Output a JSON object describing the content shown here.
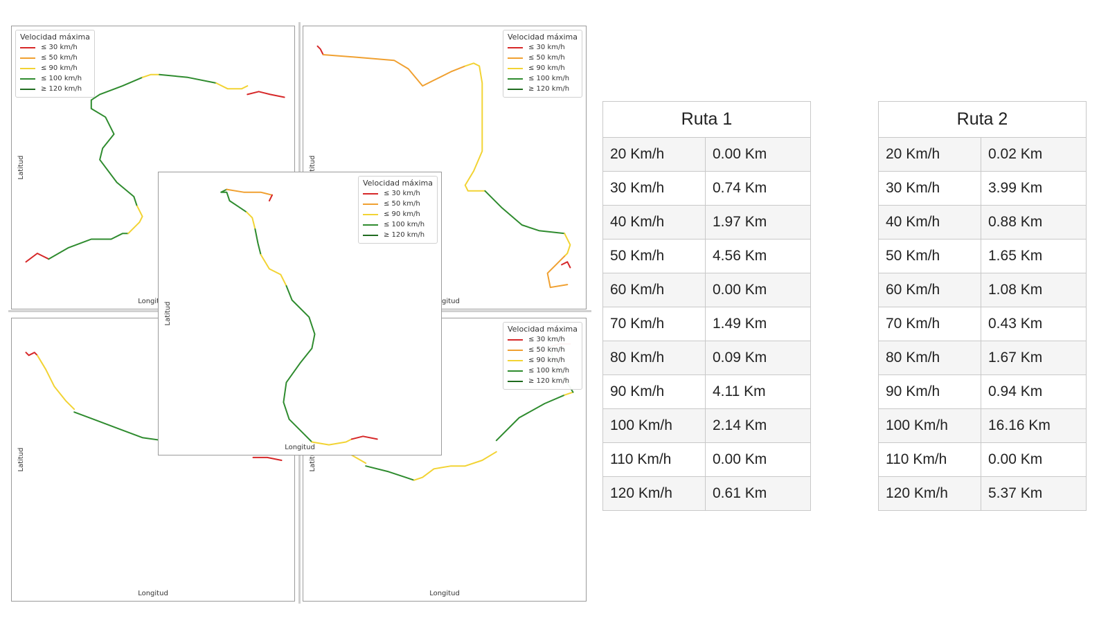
{
  "chart_data": [
    {
      "type": "line",
      "xlabel": "Longitud",
      "ylabel": "Latitud",
      "legend": {
        "placement": "top-left",
        "title": "Velocidad máxima",
        "entries": [
          {
            "label": "≤ 30 km/h",
            "color": "#d62728"
          },
          {
            "label": "≤ 50 km/h",
            "color": "#f0a030"
          },
          {
            "label": "≤ 90 km/h",
            "color": "#f2d333"
          },
          {
            "label": "≤ 100 km/h",
            "color": "#2e8b2e"
          },
          {
            "label": "≥ 120 km/h",
            "color": "#1f6b1f"
          }
        ]
      },
      "series": [
        {
          "color": "#d62728",
          "x": [
            0.05,
            0.09,
            0.11,
            0.13
          ],
          "y": [
            0.17,
            0.2,
            0.19,
            0.18
          ]
        },
        {
          "color": "#2e8b2e",
          "x": [
            0.13,
            0.2,
            0.28,
            0.35,
            0.39,
            0.41
          ],
          "y": [
            0.18,
            0.22,
            0.25,
            0.25,
            0.27,
            0.27
          ]
        },
        {
          "color": "#f2d333",
          "x": [
            0.41,
            0.45,
            0.46,
            0.44
          ],
          "y": [
            0.27,
            0.31,
            0.33,
            0.37
          ]
        },
        {
          "color": "#2e8b2e",
          "x": [
            0.44,
            0.43,
            0.37,
            0.31,
            0.32,
            0.36,
            0.33,
            0.28,
            0.28,
            0.31,
            0.39,
            0.46
          ],
          "y": [
            0.37,
            0.4,
            0.45,
            0.53,
            0.57,
            0.62,
            0.68,
            0.71,
            0.74,
            0.76,
            0.79,
            0.82
          ]
        },
        {
          "color": "#f2d333",
          "x": [
            0.46,
            0.49,
            0.52
          ],
          "y": [
            0.82,
            0.83,
            0.83
          ]
        },
        {
          "color": "#2e8b2e",
          "x": [
            0.52,
            0.62,
            0.72
          ],
          "y": [
            0.83,
            0.82,
            0.8
          ]
        },
        {
          "color": "#f2d333",
          "x": [
            0.72,
            0.76,
            0.81,
            0.83
          ],
          "y": [
            0.8,
            0.78,
            0.78,
            0.79
          ]
        },
        {
          "color": "#d62728",
          "x": [
            0.83,
            0.87,
            0.91,
            0.96
          ],
          "y": [
            0.76,
            0.77,
            0.76,
            0.75
          ]
        }
      ]
    },
    {
      "type": "line",
      "xlabel": "Longitud",
      "ylabel": "Latitud",
      "legend": {
        "placement": "top-right",
        "title": "Velocidad máxima",
        "entries": [
          {
            "label": "≤ 30 km/h",
            "color": "#d62728"
          },
          {
            "label": "≤ 50 km/h",
            "color": "#f0a030"
          },
          {
            "label": "≤ 90 km/h",
            "color": "#f2d333"
          },
          {
            "label": "≤ 100 km/h",
            "color": "#2e8b2e"
          },
          {
            "label": "≥ 120 km/h",
            "color": "#1f6b1f"
          }
        ]
      },
      "series": [
        {
          "color": "#d62728",
          "x": [
            0.05,
            0.06,
            0.07
          ],
          "y": [
            0.93,
            0.92,
            0.9
          ]
        },
        {
          "color": "#f0a030",
          "x": [
            0.07,
            0.2,
            0.32,
            0.37,
            0.42,
            0.46,
            0.52,
            0.57
          ],
          "y": [
            0.9,
            0.89,
            0.88,
            0.85,
            0.79,
            0.81,
            0.84,
            0.86
          ]
        },
        {
          "color": "#f2d333",
          "x": [
            0.57,
            0.6,
            0.62,
            0.63,
            0.63,
            0.6,
            0.57,
            0.58,
            0.64
          ],
          "y": [
            0.86,
            0.87,
            0.86,
            0.8,
            0.56,
            0.49,
            0.44,
            0.42,
            0.42
          ]
        },
        {
          "color": "#2e8b2e",
          "x": [
            0.64,
            0.7,
            0.77,
            0.83,
            0.92
          ],
          "y": [
            0.42,
            0.36,
            0.3,
            0.28,
            0.27
          ]
        },
        {
          "color": "#f2d333",
          "x": [
            0.92,
            0.94,
            0.93,
            0.92
          ],
          "y": [
            0.27,
            0.23,
            0.2,
            0.19
          ]
        },
        {
          "color": "#f0a030",
          "x": [
            0.92,
            0.89,
            0.86,
            0.87,
            0.93
          ],
          "y": [
            0.19,
            0.16,
            0.13,
            0.08,
            0.09
          ]
        },
        {
          "color": "#d62728",
          "x": [
            0.91,
            0.93,
            0.94
          ],
          "y": [
            0.16,
            0.17,
            0.15
          ]
        }
      ]
    },
    {
      "type": "line",
      "xlabel": "Longitud",
      "ylabel": "Latitud",
      "series": [
        {
          "color": "#d62728",
          "x": [
            0.05,
            0.06,
            0.08,
            0.09
          ],
          "y": [
            0.88,
            0.87,
            0.88,
            0.87
          ]
        },
        {
          "color": "#f2d333",
          "x": [
            0.09,
            0.12,
            0.15,
            0.19,
            0.22
          ],
          "y": [
            0.87,
            0.82,
            0.76,
            0.71,
            0.68
          ]
        },
        {
          "color": "#2e8b2e",
          "x": [
            0.22,
            0.3,
            0.38,
            0.46,
            0.6,
            0.73
          ],
          "y": [
            0.67,
            0.64,
            0.61,
            0.58,
            0.56,
            0.54
          ]
        },
        {
          "color": "#f2d333",
          "x": [
            0.73,
            0.77,
            0.82,
            0.85
          ],
          "y": [
            0.54,
            0.52,
            0.53,
            0.52
          ]
        },
        {
          "color": "#d62728",
          "x": [
            0.85,
            0.9,
            0.95
          ],
          "y": [
            0.51,
            0.51,
            0.5
          ]
        }
      ]
    },
    {
      "type": "line",
      "xlabel": "Longitud",
      "ylabel": "Latitud",
      "legend": {
        "placement": "top-right",
        "title": "Velocidad máxima",
        "entries": [
          {
            "label": "≤ 30 km/h",
            "color": "#d62728"
          },
          {
            "label": "≤ 50 km/h",
            "color": "#f0a030"
          },
          {
            "label": "≤ 90 km/h",
            "color": "#f2d333"
          },
          {
            "label": "≤ 100 km/h",
            "color": "#2e8b2e"
          },
          {
            "label": "≥ 120 km/h",
            "color": "#1f6b1f"
          }
        ]
      },
      "series": [
        {
          "color": "#d62728",
          "x": [
            0.05,
            0.07,
            0.09
          ],
          "y": [
            0.58,
            0.57,
            0.58
          ]
        },
        {
          "color": "#f2d333",
          "x": [
            0.09,
            0.15,
            0.22
          ],
          "y": [
            0.56,
            0.53,
            0.49
          ]
        },
        {
          "color": "#2e8b2e",
          "x": [
            0.22,
            0.3,
            0.36,
            0.39
          ],
          "y": [
            0.48,
            0.46,
            0.44,
            0.43
          ]
        },
        {
          "color": "#f2d333",
          "x": [
            0.39,
            0.42,
            0.46,
            0.52,
            0.57,
            0.63,
            0.68
          ],
          "y": [
            0.43,
            0.44,
            0.47,
            0.48,
            0.48,
            0.5,
            0.53
          ]
        },
        {
          "color": "#2e8b2e",
          "x": [
            0.68,
            0.76,
            0.85,
            0.92
          ],
          "y": [
            0.57,
            0.65,
            0.7,
            0.73
          ]
        },
        {
          "color": "#f2d333",
          "x": [
            0.92,
            0.95
          ],
          "y": [
            0.73,
            0.74
          ]
        },
        {
          "color": "#2e8b2e",
          "x": [
            0.95,
            0.92,
            0.9,
            0.88,
            0.87
          ],
          "y": [
            0.74,
            0.79,
            0.82,
            0.86,
            0.89
          ]
        },
        {
          "color": "#d62728",
          "x": [
            0.87,
            0.9,
            0.94
          ],
          "y": [
            0.9,
            0.91,
            0.91
          ]
        }
      ]
    },
    {
      "type": "line",
      "xlabel": "Longitud",
      "ylabel": "Latitud",
      "legend": {
        "placement": "top-right",
        "title": "Velocidad máxima",
        "entries": [
          {
            "label": "≤ 30 km/h",
            "color": "#d62728"
          },
          {
            "label": "≤ 50 km/h",
            "color": "#f0a030"
          },
          {
            "label": "≤ 90 km/h",
            "color": "#f2d333"
          },
          {
            "label": "≤ 100 km/h",
            "color": "#2e8b2e"
          },
          {
            "label": "≥ 120 km/h",
            "color": "#1f6b1f"
          }
        ]
      },
      "series": [
        {
          "color": "#2e8b2e",
          "x": [
            0.24,
            0.22,
            0.24,
            0.25,
            0.28,
            0.31
          ],
          "y": [
            0.94,
            0.93,
            0.93,
            0.9,
            0.88,
            0.86
          ]
        },
        {
          "color": "#f0a030",
          "x": [
            0.24,
            0.3,
            0.36,
            0.4
          ],
          "y": [
            0.94,
            0.93,
            0.93,
            0.92
          ]
        },
        {
          "color": "#d62728",
          "x": [
            0.4,
            0.39
          ],
          "y": [
            0.92,
            0.9
          ]
        },
        {
          "color": "#f2d333",
          "x": [
            0.31,
            0.33,
            0.34
          ],
          "y": [
            0.86,
            0.84,
            0.8
          ]
        },
        {
          "color": "#2e8b2e",
          "x": [
            0.34,
            0.35,
            0.36
          ],
          "y": [
            0.8,
            0.75,
            0.71
          ]
        },
        {
          "color": "#f2d333",
          "x": [
            0.36,
            0.39,
            0.43,
            0.45
          ],
          "y": [
            0.71,
            0.66,
            0.64,
            0.6
          ]
        },
        {
          "color": "#2e8b2e",
          "x": [
            0.45,
            0.47,
            0.53,
            0.55,
            0.54,
            0.5,
            0.45,
            0.44,
            0.46,
            0.51,
            0.54
          ],
          "y": [
            0.6,
            0.55,
            0.49,
            0.43,
            0.38,
            0.33,
            0.26,
            0.19,
            0.13,
            0.08,
            0.05
          ]
        },
        {
          "color": "#f2d333",
          "x": [
            0.54,
            0.6,
            0.66,
            0.68
          ],
          "y": [
            0.05,
            0.04,
            0.05,
            0.06
          ]
        },
        {
          "color": "#d62728",
          "x": [
            0.68,
            0.72,
            0.77
          ],
          "y": [
            0.06,
            0.07,
            0.06
          ]
        }
      ]
    }
  ],
  "tables": [
    {
      "title": "Ruta 1",
      "rows": [
        [
          "20 Km/h",
          "0.00 Km"
        ],
        [
          "30 Km/h",
          "0.74 Km"
        ],
        [
          "40 Km/h",
          "1.97 Km"
        ],
        [
          "50 Km/h",
          "4.56 Km"
        ],
        [
          "60 Km/h",
          "0.00 Km"
        ],
        [
          "70 Km/h",
          "1.49 Km"
        ],
        [
          "80 Km/h",
          "0.09 Km"
        ],
        [
          "90 Km/h",
          "4.11 Km"
        ],
        [
          "100 Km/h",
          "2.14 Km"
        ],
        [
          "110 Km/h",
          "0.00 Km"
        ],
        [
          "120 Km/h",
          "0.61 Km"
        ]
      ]
    },
    {
      "title": "Ruta 2",
      "rows": [
        [
          "20 Km/h",
          "0.02 Km"
        ],
        [
          "30 Km/h",
          "3.99 Km"
        ],
        [
          "40 Km/h",
          "0.88 Km"
        ],
        [
          "50 Km/h",
          "1.65 Km"
        ],
        [
          "60 Km/h",
          "1.08 Km"
        ],
        [
          "70 Km/h",
          "0.43 Km"
        ],
        [
          "80 Km/h",
          "1.67 Km"
        ],
        [
          "90 Km/h",
          "0.94 Km"
        ],
        [
          "100 Km/h",
          "16.16 Km"
        ],
        [
          "110 Km/h",
          "0.00 Km"
        ],
        [
          "120 Km/h",
          "5.37 Km"
        ]
      ]
    }
  ]
}
